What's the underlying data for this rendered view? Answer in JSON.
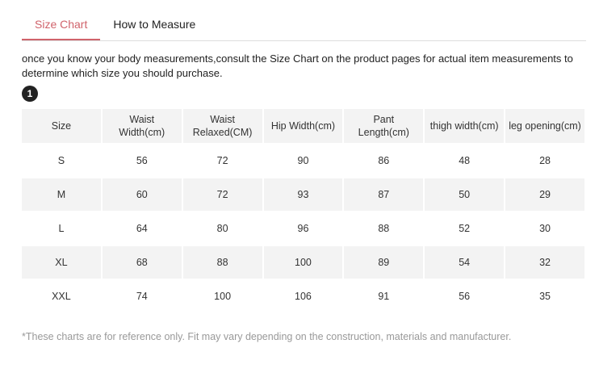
{
  "tabs": [
    {
      "label": "Size Chart",
      "active": true
    },
    {
      "label": "How to Measure",
      "active": false
    }
  ],
  "intro": "once you know your body measurements,consult the Size Chart on the product pages for actual item measurements to determine which size you should purchase.",
  "step_badge": "1",
  "table": {
    "headers": [
      [
        "Size",
        ""
      ],
      [
        "Waist",
        "Width(cm)"
      ],
      [
        "Waist",
        "Relaxed(CM)"
      ],
      [
        "Hip Width(cm)",
        ""
      ],
      [
        "Pant",
        "Length(cm)"
      ],
      [
        "thigh width(cm)",
        ""
      ],
      [
        "leg opening(cm)",
        ""
      ]
    ],
    "rows": [
      [
        "S",
        "56",
        "72",
        "90",
        "86",
        "48",
        "28"
      ],
      [
        "M",
        "60",
        "72",
        "93",
        "87",
        "50",
        "29"
      ],
      [
        "L",
        "64",
        "80",
        "96",
        "88",
        "52",
        "30"
      ],
      [
        "XL",
        "68",
        "88",
        "100",
        "89",
        "54",
        "32"
      ],
      [
        "XXL",
        "74",
        "100",
        "106",
        "91",
        "56",
        "35"
      ]
    ]
  },
  "footnote": "*These charts are for reference only. Fit may vary depending on the construction, materials and manufacturer.",
  "colors": {
    "accent": "#d0636b",
    "header_bg": "#f3f3f3"
  }
}
